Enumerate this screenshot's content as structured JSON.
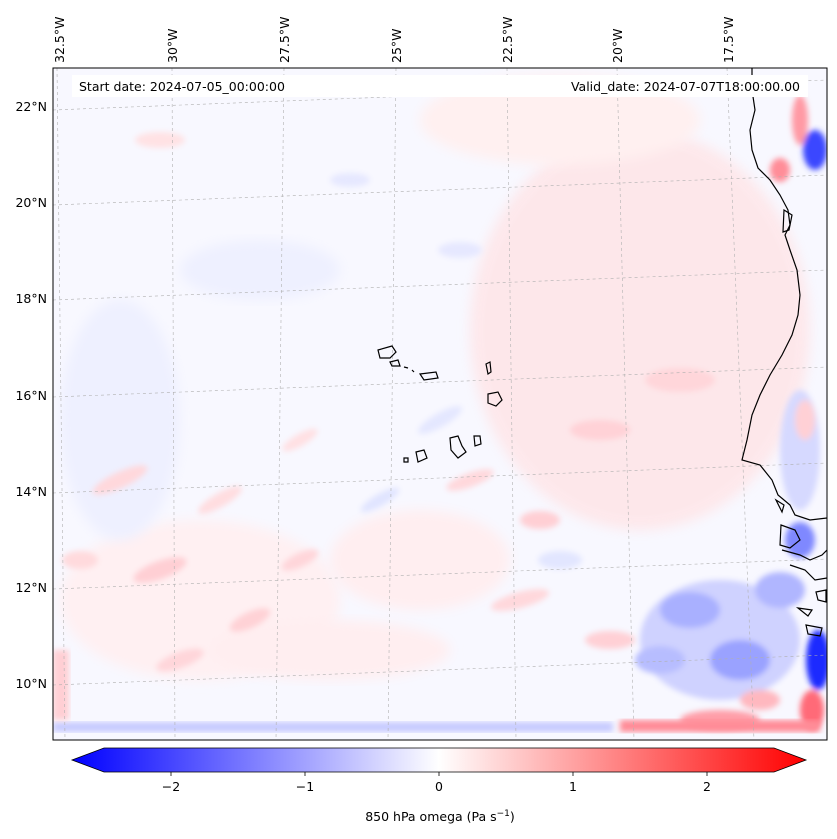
{
  "header": {
    "start_date": "Start date: 2024-07-05_00:00:00",
    "valid_date": "Valid_date: 2024-07-07T18:00:00.00"
  },
  "longitude_labels": [
    "32.5°W",
    "30°W",
    "27.5°W",
    "25°W",
    "22.5°W",
    "20°W",
    "17.5°W"
  ],
  "latitude_labels": [
    "22°N",
    "20°N",
    "18°N",
    "16°N",
    "14°N",
    "12°N",
    "10°N"
  ],
  "colorbar": {
    "label": "850 hPa omega (Pa s",
    "label_exponent": "−1",
    "label_close": ")",
    "ticks": [
      "−2",
      "−1",
      "0",
      "1",
      "2"
    ],
    "range": [
      -2.6,
      2.6
    ],
    "low_color": "#0000ff",
    "mid_color": "#ffffff",
    "high_color": "#ff0000"
  },
  "colors": {
    "land_outline": "#000000",
    "gridline": "#b0b0b0"
  }
}
